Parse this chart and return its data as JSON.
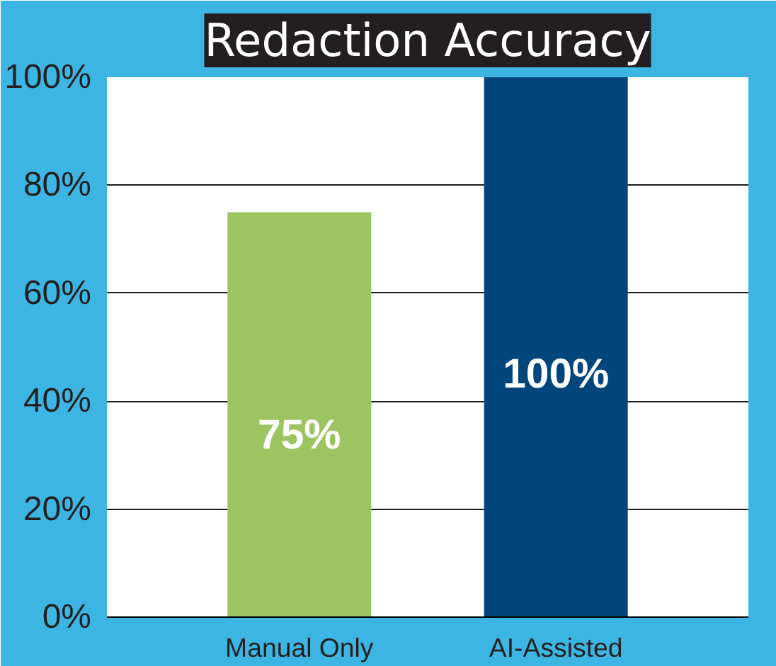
{
  "chart_data": {
    "type": "bar",
    "title": "Redaction Accuracy",
    "categories": [
      "Manual Only",
      "AI-Assisted"
    ],
    "values": [
      75,
      100
    ],
    "colors": [
      "#9cc562",
      "#00457c"
    ],
    "value_labels": [
      "75%",
      "100%"
    ],
    "ylim": [
      0,
      100
    ],
    "yticks": [
      {
        "value": 0,
        "label": "0%"
      },
      {
        "value": 20,
        "label": "20%"
      },
      {
        "value": 40,
        "label": "40%"
      },
      {
        "value": 60,
        "label": "60%"
      },
      {
        "value": 80,
        "label": "80%"
      },
      {
        "value": 100,
        "label": "100%"
      }
    ],
    "grid": "y"
  }
}
